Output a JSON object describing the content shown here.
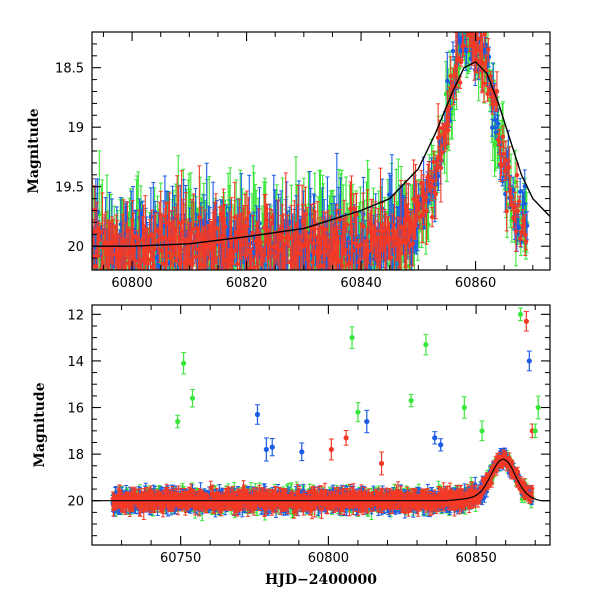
{
  "chart_data": [
    {
      "type": "scatter",
      "title": "",
      "xlabel": "",
      "ylabel": "Magnitude",
      "xlim": [
        60793,
        60873
      ],
      "ylim": [
        20.2,
        18.2
      ],
      "y_inverted": true,
      "grid": false,
      "legend": "none",
      "x_ticks": [
        "60800",
        "60820",
        "60840",
        "60860"
      ],
      "y_ticks": [
        "18.5",
        "19",
        "19.5",
        "20"
      ],
      "series": [
        {
          "color": "#39e639",
          "marker": "circle-with-errorbar"
        },
        {
          "color": "#1a5ce6",
          "marker": "circle-with-errorbar"
        },
        {
          "color": "#f23a26",
          "marker": "circle-with-errorbar"
        }
      ],
      "model_curve": {
        "color": "#000000",
        "x": [
          60793,
          60800,
          60810,
          60820,
          60830,
          60840,
          60845,
          60850,
          60853,
          60856,
          60858,
          60860,
          60862,
          60864,
          60866,
          60868,
          60870,
          60873
        ],
        "y": [
          20.0,
          20.0,
          19.98,
          19.92,
          19.85,
          19.7,
          19.6,
          19.35,
          19.05,
          18.7,
          18.5,
          18.45,
          18.55,
          18.8,
          19.1,
          19.4,
          19.6,
          19.75
        ]
      }
    },
    {
      "type": "scatter",
      "title": "",
      "xlabel": "HJD−2400000",
      "ylabel": "Magnitude",
      "xlim": [
        60720,
        60875
      ],
      "ylim": [
        21.9,
        11.6
      ],
      "y_inverted": true,
      "grid": false,
      "legend": "none",
      "x_ticks": [
        "60750",
        "60800",
        "60850"
      ],
      "y_ticks": [
        "12",
        "14",
        "16",
        "18",
        "20"
      ],
      "series": [
        {
          "color": "#39e639",
          "marker": "circle-with-errorbar"
        },
        {
          "color": "#1a5ce6",
          "marker": "circle-with-errorbar"
        },
        {
          "color": "#f23a26",
          "marker": "circle-with-errorbar"
        }
      ],
      "outliers": [
        {
          "series": 0,
          "x": 60749,
          "y": 16.6
        },
        {
          "series": 0,
          "x": 60751,
          "y": 14.1
        },
        {
          "series": 0,
          "x": 60754,
          "y": 15.6
        },
        {
          "series": 1,
          "x": 60776,
          "y": 16.3
        },
        {
          "series": 1,
          "x": 60779,
          "y": 17.8
        },
        {
          "series": 1,
          "x": 60781,
          "y": 17.7
        },
        {
          "series": 1,
          "x": 60791,
          "y": 17.9
        },
        {
          "series": 2,
          "x": 60801,
          "y": 17.8
        },
        {
          "series": 2,
          "x": 60806,
          "y": 17.3
        },
        {
          "series": 0,
          "x": 60808,
          "y": 13.0
        },
        {
          "series": 0,
          "x": 60810,
          "y": 16.2
        },
        {
          "series": 1,
          "x": 60813,
          "y": 16.6
        },
        {
          "series": 2,
          "x": 60818,
          "y": 18.4
        },
        {
          "series": 0,
          "x": 60828,
          "y": 15.7
        },
        {
          "series": 0,
          "x": 60833,
          "y": 13.3
        },
        {
          "series": 1,
          "x": 60836,
          "y": 17.3
        },
        {
          "series": 1,
          "x": 60838,
          "y": 17.6
        },
        {
          "series": 0,
          "x": 60846,
          "y": 16.0
        },
        {
          "series": 0,
          "x": 60852,
          "y": 17.0
        },
        {
          "series": 0,
          "x": 60865,
          "y": 12.0
        },
        {
          "series": 2,
          "x": 60867,
          "y": 12.3
        },
        {
          "series": 1,
          "x": 60868,
          "y": 14.0
        },
        {
          "series": 2,
          "x": 60869,
          "y": 17.0
        },
        {
          "series": 0,
          "x": 60871,
          "y": 16.0
        },
        {
          "series": 0,
          "x": 60870,
          "y": 17.0
        }
      ]
    }
  ]
}
